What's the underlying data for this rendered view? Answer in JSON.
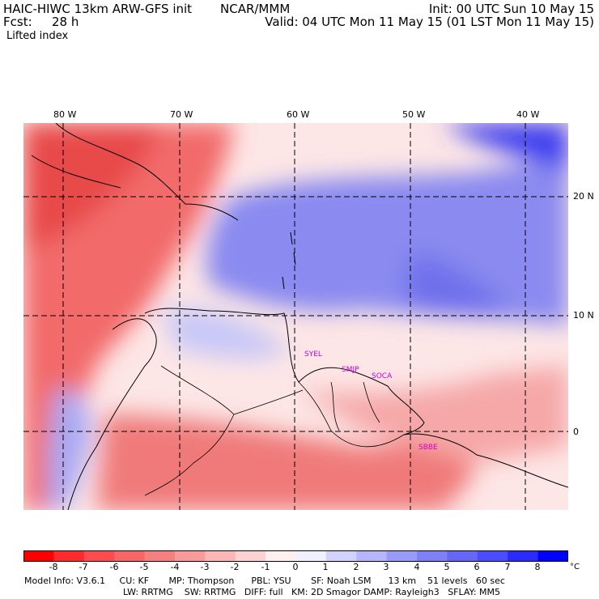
{
  "header": {
    "model_title": "HAIC-HIWC 13km ARW-GFS init",
    "org": "NCAR/MMM",
    "init": "Init: 00 UTC Sun 10 May 15",
    "fcst_label": "Fcst:",
    "fcst_value": "28 h",
    "valid": "Valid: 04 UTC Mon 11 May 15 (01 LST Mon 11 May 15)",
    "field_name": "Lifted index"
  },
  "map": {
    "lon_labels": [
      "80 W",
      "70 W",
      "60 W",
      "50 W",
      "40 W"
    ],
    "lat_labels": [
      "20 N",
      "10 N",
      "0"
    ],
    "stations": [
      "SYEL",
      "SMJP",
      "SOCA",
      "SBBE"
    ],
    "colors": {
      "neg": "#ee3b3b",
      "pos": "#4a4ae8",
      "zero": "#ffffff"
    }
  },
  "colorbar": {
    "ticks": [
      "-8",
      "-7",
      "-6",
      "-5",
      "-4",
      "-3",
      "-2",
      "-1",
      "0",
      "1",
      "2",
      "3",
      "4",
      "5",
      "6",
      "7",
      "8"
    ],
    "unit": "°C",
    "colors": [
      "#ff0000",
      "#ff2a2a",
      "#ff4b4b",
      "#f86666",
      "#f87f7f",
      "#fa9a9a",
      "#fcb6b6",
      "#fed2d2",
      "#fff0f0",
      "#f0f0ff",
      "#d2d2fe",
      "#b6b6fc",
      "#9a9afa",
      "#7f7ff8",
      "#6666f8",
      "#4b4bff",
      "#2a2aff",
      "#0000ff"
    ]
  },
  "footer": {
    "line1": "Model Info: V3.6.1     CU: KF       MP: Thompson      PBL: YSU       SF: Noah LSM      13 km    51 levels   60 sec",
    "line2": "LW: RRTMG    SW: RRTMG   DIFF: full   KM: 2D Smagor DAMP: Rayleigh3   SFLAY: MM5"
  }
}
